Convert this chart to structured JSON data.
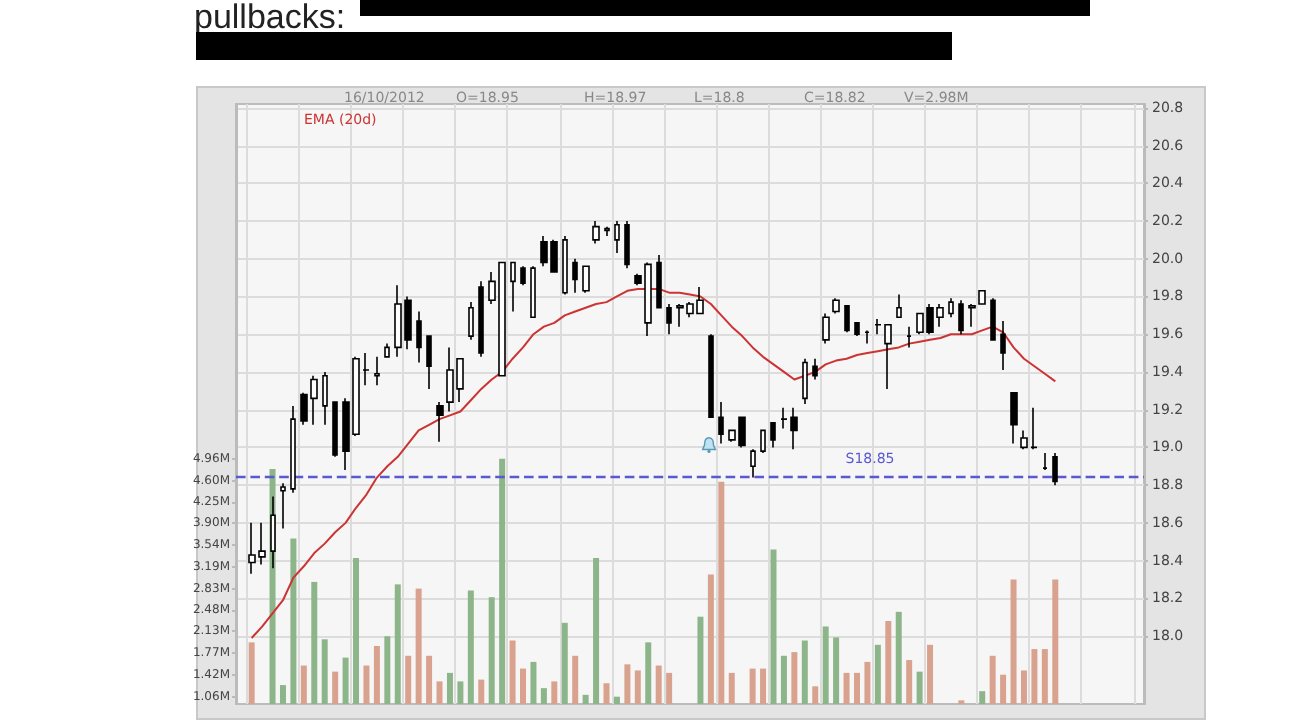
{
  "chart_data": {
    "type": "candlestick",
    "annotations": [
      "pullbacks:",
      "16/10/2012",
      "O=18.95",
      "H=18.97",
      "L=18.8",
      "C=18.82",
      "V=2.98M"
    ],
    "categories": [
      null,
      null,
      null,
      null,
      null,
      null,
      null,
      null,
      null,
      null,
      null,
      null,
      null,
      null,
      null,
      null,
      null,
      null,
      null,
      null,
      null,
      null,
      null,
      null,
      null,
      null,
      null,
      null,
      null,
      null,
      null,
      null,
      null,
      null,
      null,
      null,
      null,
      null,
      null,
      null,
      null,
      null,
      null,
      null,
      null,
      null,
      null,
      null,
      null,
      null,
      null,
      null,
      null,
      null,
      null,
      null,
      null,
      null,
      null,
      null,
      null,
      null,
      null,
      null,
      null,
      null,
      null,
      null,
      null,
      null,
      null,
      null,
      null,
      null,
      null,
      null,
      null,
      null
    ],
    "ohlc": [
      [
        18.39,
        18.6,
        18.33,
        18.43
      ],
      [
        18.42,
        18.6,
        18.38,
        18.45
      ],
      [
        18.45,
        18.74,
        18.36,
        18.64
      ],
      [
        18.77,
        18.81,
        18.57,
        18.79
      ],
      [
        18.78,
        19.22,
        18.76,
        19.15
      ],
      [
        19.28,
        19.29,
        19.12,
        19.14
      ],
      [
        19.26,
        19.38,
        19.12,
        19.36
      ],
      [
        19.22,
        19.4,
        19.12,
        19.38
      ],
      [
        19.24,
        19.24,
        18.95,
        18.96
      ],
      [
        19.24,
        19.26,
        18.88,
        18.98
      ],
      [
        19.07,
        19.48,
        19.06,
        19.47
      ],
      [
        19.41,
        19.5,
        19.33,
        19.41
      ],
      [
        19.38,
        19.48,
        19.33,
        19.39
      ],
      [
        19.48,
        19.55,
        19.48,
        19.53
      ],
      [
        19.53,
        19.86,
        19.48,
        19.76
      ],
      [
        19.78,
        19.8,
        19.52,
        19.57
      ],
      [
        19.67,
        19.72,
        19.45,
        19.53
      ],
      [
        19.59,
        19.59,
        19.31,
        19.43
      ],
      [
        19.22,
        19.24,
        19.03,
        19.17
      ],
      [
        19.24,
        19.53,
        19.19,
        19.41
      ],
      [
        19.31,
        19.47,
        19.24,
        19.47
      ],
      [
        19.59,
        19.77,
        19.57,
        19.74
      ],
      [
        19.85,
        19.88,
        19.48,
        19.5
      ],
      [
        19.78,
        19.93,
        19.76,
        19.88
      ],
      [
        19.38,
        19.98,
        19.38,
        19.98
      ],
      [
        19.88,
        19.98,
        19.72,
        19.98
      ],
      [
        19.95,
        19.96,
        19.86,
        19.87
      ],
      [
        19.69,
        19.96,
        19.69,
        19.95
      ],
      [
        20.09,
        20.12,
        19.96,
        19.98
      ],
      [
        20.09,
        20.1,
        19.93,
        19.93
      ],
      [
        19.82,
        20.12,
        19.81,
        20.1
      ],
      [
        19.98,
        20.0,
        19.82,
        19.89
      ],
      [
        19.83,
        19.96,
        19.82,
        19.96
      ],
      [
        20.1,
        20.2,
        20.08,
        20.17
      ],
      [
        20.15,
        20.17,
        20.12,
        20.16
      ],
      [
        20.1,
        20.2,
        20.03,
        20.18
      ],
      [
        20.18,
        20.2,
        19.95,
        19.97
      ],
      [
        19.91,
        19.92,
        19.86,
        19.87
      ],
      [
        19.66,
        19.98,
        19.59,
        19.97
      ],
      [
        19.98,
        20.02,
        19.74,
        19.74
      ],
      [
        19.74,
        19.76,
        19.6,
        19.66
      ],
      [
        19.74,
        19.76,
        19.64,
        19.75
      ],
      [
        19.71,
        19.77,
        19.69,
        19.76
      ],
      [
        19.71,
        19.85,
        19.71,
        19.78
      ],
      [
        19.59,
        19.6,
        19.16,
        19.16
      ],
      [
        19.16,
        19.24,
        19.02,
        19.07
      ],
      [
        19.04,
        19.09,
        19.03,
        19.09
      ],
      [
        19.16,
        19.16,
        19.0,
        19.01
      ],
      [
        18.9,
        18.99,
        18.84,
        18.98
      ],
      [
        18.98,
        19.09,
        18.97,
        19.09
      ],
      [
        19.13,
        19.13,
        19.0,
        19.04
      ],
      [
        19.15,
        19.21,
        19.1,
        19.15
      ],
      [
        19.16,
        19.21,
        18.99,
        19.09
      ],
      [
        19.26,
        19.47,
        19.23,
        19.45
      ],
      [
        19.43,
        19.47,
        19.36,
        19.38
      ],
      [
        19.57,
        19.71,
        19.55,
        19.69
      ],
      [
        19.72,
        19.79,
        19.71,
        19.78
      ],
      [
        19.75,
        19.75,
        19.61,
        19.62
      ],
      [
        19.66,
        19.66,
        19.59,
        19.6
      ],
      [
        19.61,
        19.62,
        19.55,
        19.61
      ],
      [
        19.65,
        19.68,
        19.6,
        19.65
      ],
      [
        19.55,
        19.65,
        19.31,
        19.65
      ],
      [
        19.69,
        19.81,
        19.69,
        19.74
      ],
      [
        19.59,
        19.64,
        19.53,
        19.59
      ],
      [
        19.61,
        19.71,
        19.6,
        19.71
      ],
      [
        19.74,
        19.76,
        19.6,
        19.61
      ],
      [
        19.69,
        19.76,
        19.64,
        19.74
      ],
      [
        19.71,
        19.79,
        19.69,
        19.77
      ],
      [
        19.76,
        19.78,
        19.6,
        19.62
      ],
      [
        19.74,
        19.76,
        19.64,
        19.75
      ],
      [
        19.76,
        19.83,
        19.76,
        19.83
      ],
      [
        19.78,
        19.79,
        19.57,
        19.57
      ],
      [
        19.6,
        19.67,
        19.41,
        19.5
      ],
      [
        19.29,
        19.29,
        19.02,
        19.12
      ],
      [
        19.0,
        19.09,
        18.99,
        19.05
      ],
      [
        19.0,
        19.21,
        18.99,
        19.0
      ],
      [
        18.89,
        18.97,
        18.88,
        18.89
      ],
      [
        18.95,
        18.97,
        18.8,
        18.82
      ]
    ],
    "series": [
      {
        "name": "EMA (20d)",
        "type": "line",
        "color": "#cc3333",
        "values": [
          17.99,
          18.05,
          18.12,
          18.19,
          18.31,
          18.37,
          18.44,
          18.49,
          18.55,
          18.6,
          18.68,
          18.75,
          18.84,
          18.9,
          18.95,
          19.02,
          19.09,
          19.12,
          19.15,
          19.17,
          19.19,
          19.25,
          19.31,
          19.36,
          19.4,
          19.47,
          19.53,
          19.6,
          19.64,
          19.66,
          19.7,
          19.72,
          19.74,
          19.76,
          19.77,
          19.8,
          19.83,
          19.84,
          19.84,
          19.84,
          19.82,
          19.82,
          19.81,
          19.8,
          19.76,
          19.7,
          19.64,
          19.59,
          19.53,
          19.48,
          19.44,
          19.4,
          19.36,
          19.38,
          19.4,
          19.44,
          19.46,
          19.47,
          19.49,
          19.5,
          19.51,
          19.52,
          19.53,
          19.55,
          19.56,
          19.57,
          19.58,
          19.6,
          19.6,
          19.6,
          19.62,
          19.64,
          19.61,
          19.53,
          19.47,
          19.43,
          19.39,
          19.35
        ]
      },
      {
        "type": "bar",
        "axis": "y2",
        "values": [
          1.95,
          null,
          4.79,
          1.25,
          3.65,
          1.57,
          2.94,
          2.0,
          1.47,
          1.7,
          3.33,
          1.57,
          1.89,
          2.05,
          2.9,
          1.73,
          2.83,
          1.73,
          1.31,
          1.45,
          1.31,
          2.8,
          1.34,
          2.69,
          4.96,
          1.98,
          1.52,
          1.63,
          1.2,
          1.31,
          2.27,
          1.73,
          1.09,
          3.33,
          1.28,
          1.06,
          1.59,
          1.49,
          1.95,
          1.57,
          1.45,
          null,
          null,
          2.37,
          3.06,
          4.58,
          1.45,
          null,
          1.52,
          1.52,
          3.47,
          1.73,
          1.79,
          1.98,
          1.23,
          2.21,
          2.03,
          1.45,
          1.45,
          1.63,
          1.91,
          2.3,
          2.45,
          1.66,
          1.47,
          1.91,
          null,
          null,
          1.0,
          null,
          1.15,
          1.73,
          1.42,
          2.98,
          1.49,
          1.84,
          1.84,
          2.98
        ],
        "colors": [
          "#d9a28e",
          "#d9a28e",
          "#8db58a",
          "#8db58a",
          "#8db58a",
          "#d9a28e",
          "#8db58a",
          "#8db58a",
          "#d9a28e",
          "#8db58a",
          "#8db58a",
          "#d9a28e",
          "#d9a28e",
          "#8db58a",
          "#8db58a",
          "#d9a28e",
          "#d9a28e",
          "#d9a28e",
          "#d9a28e",
          "#8db58a",
          "#8db58a",
          "#8db58a",
          "#d9a28e",
          "#8db58a",
          "#8db58a",
          "#d9a28e",
          "#d9a28e",
          "#8db58a",
          "#8db58a",
          "#d9a28e",
          "#8db58a",
          "#d9a28e",
          "#8db58a",
          "#8db58a",
          "#d9a28e",
          "#8db58a",
          "#d9a28e",
          "#d9a28e",
          "#8db58a",
          "#d9a28e",
          "#d9a28e",
          "#d9a28e",
          "#d9a28e",
          "#8db58a",
          "#d9a28e",
          "#d9a28e",
          "#d9a28e",
          "#d9a28e",
          "#d9a28e",
          "#d9a28e",
          "#8db58a",
          "#8db58a",
          "#d9a28e",
          "#8db58a",
          "#d9a28e",
          "#8db58a",
          "#8db58a",
          "#d9a28e",
          "#d9a28e",
          "#d9a28e",
          "#8db58a",
          "#d9a28e",
          "#8db58a",
          "#d9a28e",
          "#8db58a",
          "#d9a28e",
          "#d9a28e",
          "#d9a28e",
          "#d9a28e",
          "#d9a28e",
          "#8db58a",
          "#d9a28e",
          "#d9a28e",
          "#d9a28e",
          "#d9a28e",
          "#d9a28e",
          "#d9a28e",
          "#d9a28e"
        ]
      }
    ],
    "ylim": [
      17.64,
      20.82
    ],
    "yticks": [
      {
        "value": 18,
        "label": "18.0"
      },
      18.2,
      18.4,
      18.6,
      18.8,
      {
        "value": 19,
        "label": "19.0"
      },
      19.2,
      19.4,
      19.6,
      19.8,
      {
        "value": 20,
        "label": "20.0"
      },
      20.2,
      20.4,
      20.6,
      20.8
    ],
    "y2lim": [
      0.94,
      10.77
    ],
    "y2ticks": [
      {
        "value": 1.06,
        "label": "1.06M"
      },
      {
        "value": 1.42,
        "label": "1.42M"
      },
      {
        "value": 1.77,
        "label": "1.77M"
      },
      {
        "value": 2.13,
        "label": "2.13M"
      },
      {
        "value": 2.48,
        "label": "2.48M"
      },
      {
        "value": 2.83,
        "label": "2.83M"
      },
      {
        "value": 3.19,
        "label": "3.19M"
      },
      {
        "value": 3.54,
        "label": "3.54M"
      },
      {
        "value": 3.9,
        "label": "3.90M"
      },
      {
        "value": 4.25,
        "label": "4.25M"
      },
      {
        "value": 4.6,
        "label": "4.60M"
      },
      {
        "value": 4.96,
        "label": "4.96M"
      }
    ],
    "ref_lines": [
      {
        "axis": "y",
        "value": 18.85,
        "label": "S18.85",
        "color": "#5a5ad0",
        "line_style": "dashed"
      }
    ],
    "grid": true,
    "legend": "top left"
  }
}
